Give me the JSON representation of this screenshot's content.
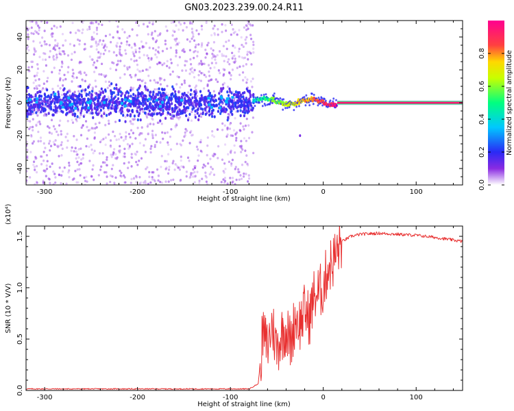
{
  "title": "GN03.2023.239.00.24.R11",
  "top_panel": {
    "xlabel": "Height of straight line (km)",
    "ylabel": "Frequency (Hz)",
    "xlim": [
      -320,
      150
    ],
    "ylim": [
      -50,
      50
    ],
    "xticks": [
      -300,
      -200,
      -100,
      0,
      100
    ],
    "yticks": [
      -40,
      -20,
      0,
      20,
      40
    ],
    "colorbar": {
      "label": "Normalized spectral amplitude",
      "range": [
        0.0,
        1.0
      ],
      "ticks": [
        "0.0",
        "0.2",
        "0.4",
        "0.6",
        "0.8"
      ],
      "stops": [
        {
          "v": 0.0,
          "color": "#ffffff"
        },
        {
          "v": 0.1,
          "color": "#8a2be2"
        },
        {
          "v": 0.2,
          "color": "#2a2af5"
        },
        {
          "v": 0.35,
          "color": "#00c8ff"
        },
        {
          "v": 0.5,
          "color": "#00ff80"
        },
        {
          "v": 0.65,
          "color": "#c8ff00"
        },
        {
          "v": 0.75,
          "color": "#ffd700"
        },
        {
          "v": 0.85,
          "color": "#ff4040"
        },
        {
          "v": 1.0,
          "color": "#ff0090"
        }
      ]
    }
  },
  "bottom_panel": {
    "xlabel": "Height of straight line (km)",
    "ylabel": "SNR (10 * V/V)",
    "scale_label": "(x10⁴)",
    "xlim": [
      -320,
      150
    ],
    "ylim": [
      0.0,
      1.6
    ],
    "xticks": [
      -300,
      -200,
      -100,
      0,
      100
    ],
    "yticks": [
      "0.0",
      "0.5",
      "1.0",
      "1.5"
    ],
    "line_color": "#e83030"
  },
  "chart_data": [
    {
      "type": "heatmap",
      "title": "GN03.2023.239.00.24.R11",
      "xlabel": "Height of straight line (km)",
      "ylabel": "Frequency (Hz)",
      "xlim": [
        -320,
        150
      ],
      "ylim": [
        -50,
        50
      ],
      "colorbar_label": "Normalized spectral amplitude",
      "regions": [
        {
          "x_range": [
            -320,
            -75
          ],
          "freq_spread_hz": 50,
          "core_band_hz": [
            -10,
            10
          ],
          "amplitude": "0.05-0.35 (scattered, strongest near 0 Hz)"
        },
        {
          "x_range": [
            -75,
            15
          ],
          "freq_spread_hz": 5,
          "amplitude": "0.4-1.0 (concentrated near 0-3 Hz, wavy)"
        },
        {
          "x_range": [
            15,
            150
          ],
          "freq_hz": 0,
          "amplitude": "0.9-1.0 (narrow line at 0 Hz)"
        }
      ]
    },
    {
      "type": "line",
      "xlabel": "Height of straight line (km)",
      "ylabel": "SNR (10 * V/V)",
      "y_multiplier": 10000,
      "xlim": [
        -320,
        150
      ],
      "ylim": [
        0.0,
        1.6
      ],
      "x": [
        -320,
        -200,
        -100,
        -80,
        -70,
        -65,
        -60,
        -55,
        -50,
        -45,
        -40,
        -35,
        -30,
        -25,
        -20,
        -15,
        -10,
        -5,
        0,
        5,
        10,
        15,
        20,
        30,
        40,
        60,
        80,
        100,
        120,
        150
      ],
      "y": [
        0.01,
        0.01,
        0.01,
        0.01,
        0.06,
        0.55,
        0.42,
        0.65,
        0.4,
        0.55,
        0.6,
        0.45,
        0.72,
        0.65,
        0.78,
        0.7,
        0.92,
        0.95,
        1.0,
        1.2,
        1.25,
        1.35,
        1.45,
        1.5,
        1.52,
        1.53,
        1.52,
        1.51,
        1.49,
        1.45
      ]
    }
  ]
}
